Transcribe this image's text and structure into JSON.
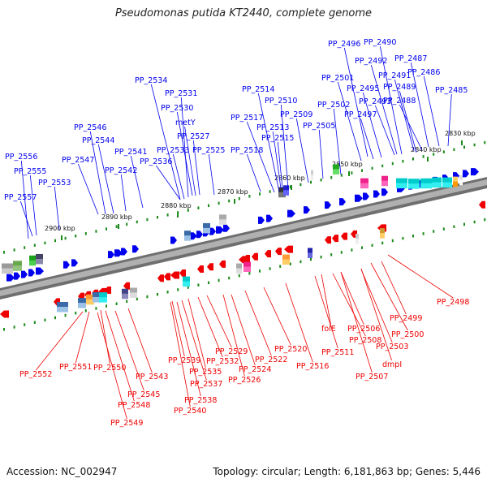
{
  "title": "Pseudomonas putida KT2440, complete genome",
  "footer": {
    "accession": "Accession: NC_002947",
    "summary": "Topology: circular; Length: 6,181,863 bp; Genes: 5,446"
  },
  "colors": {
    "forward": "#0000ee",
    "reverse": "#ee0000",
    "backbone": "#8c8c8c",
    "tick": "#1a8a1a"
  },
  "kbp_labels": [
    "2830 kbp",
    "2840 kbp",
    "2850 kbp",
    "2860 kbp",
    "2870 kbp",
    "2880 kbp",
    "2890 kbp",
    "2900 kbp"
  ],
  "top_labels": [
    "PP_2496",
    "PP_2490",
    "PP_2492",
    "PP_2487",
    "PP_2501",
    "PP_2491",
    "PP_2486",
    "PP_2495",
    "PP_2489",
    "PP_2485",
    "PP_2534",
    "PP_2514",
    "PP_2493",
    "PP_2488",
    "PP_2531",
    "PP_2510",
    "PP_2502",
    "PP_2530",
    "PP_2509",
    "PP_2497",
    "PP_2517",
    "metY",
    "PP_2513",
    "PP_2505",
    "PP_2546",
    "PP_2527",
    "PP_2515",
    "PP_2544",
    "PP_2541",
    "PP_2533",
    "PP_2525",
    "PP_2518",
    "PP_2556",
    "PP_2547",
    "PP_2536",
    "PP_2542",
    "PP_2555",
    "PP_2553",
    "PP_2557"
  ],
  "bottom_labels": [
    "PP_2498",
    "PP_2499",
    "PP_2500",
    "folE",
    "PP_2506",
    "PP_2503",
    "PP_2508",
    "PP_2511",
    "dmpI",
    "PP_2507",
    "PP_2520",
    "PP_2529",
    "PP_2522",
    "PP_2532",
    "PP_2539",
    "PP_2516",
    "PP_2552",
    "PP_2551",
    "PP_2550",
    "PP_2524",
    "PP_2535",
    "PP_2526",
    "PP_2543",
    "PP_2537",
    "PP_2545",
    "PP_2538",
    "PP_2548",
    "PP_2540",
    "PP_2549"
  ]
}
